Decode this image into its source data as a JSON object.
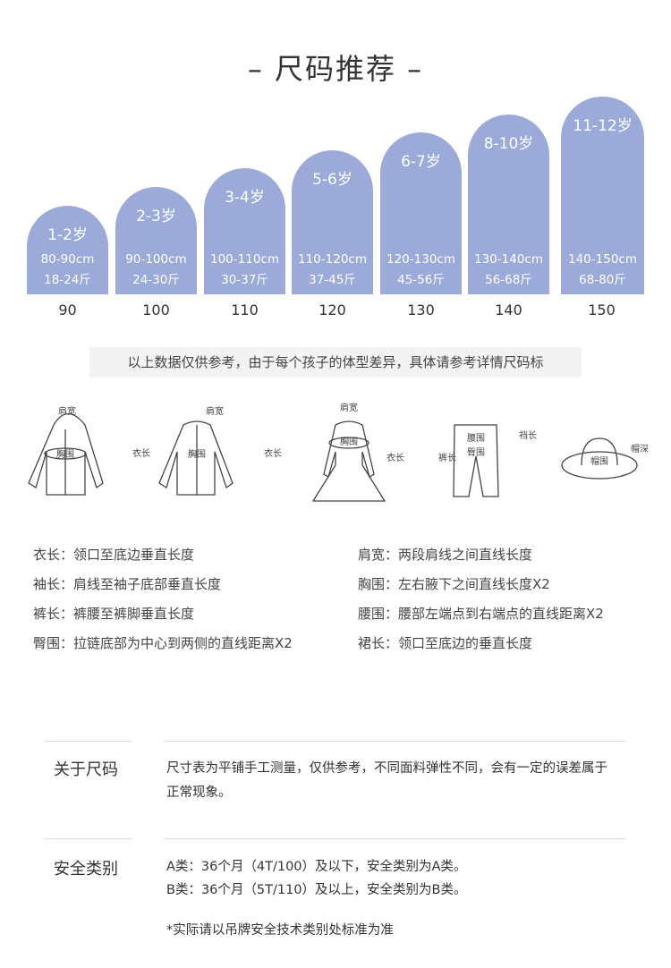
{
  "title": "– 尺码推荐 –",
  "bar_color": "#9baad8",
  "sizes": [
    {
      "age": "1-2岁",
      "height": "80-90cm",
      "weight": "18-24斤",
      "size": "90"
    },
    {
      "age": "2-3岁",
      "height": "90-100cm",
      "weight": "24-30斤",
      "size": "100"
    },
    {
      "age": "3-4岁",
      "height": "100-110cm",
      "weight": "30-37斤",
      "size": "110"
    },
    {
      "age": "5-6岁",
      "height": "110-120cm",
      "weight": "37-45斤",
      "size": "120"
    },
    {
      "age": "6-7岁",
      "height": "120-130cm",
      "weight": "45-56斤",
      "size": "130"
    },
    {
      "age": "8-10岁",
      "height": "130-140cm",
      "weight": "56-68斤",
      "size": "140"
    },
    {
      "age": "11-12岁",
      "height": "140-150cm",
      "weight": "68-80斤",
      "size": "150"
    }
  ],
  "note": "以上数据仅供参考，由于每个孩子的体型差异，具体请参考详情尺码标",
  "illus_labels": {
    "shoulder": "肩宽",
    "chest": "胸围",
    "sleeve": "袖长",
    "length": "衣长",
    "waist": "腰围",
    "hip": "臀围",
    "pants": "裤长",
    "rise": "裆长",
    "hat": "帽围",
    "hat_depth": "帽深"
  },
  "definitions": [
    "衣长：领口至底边垂直长度",
    "肩宽：两段肩线之间直线长度",
    "袖长：肩线至袖子底部垂直长度",
    "胸围：左右腋下之间直线长度X2",
    "裤长：裤腰至裤脚垂直长度",
    "腰围：腰部左端点到右端点的直线距离X2",
    "臀围：拉链底部为中心到两侧的直线距离X2",
    "裙长：领口至底边的垂直长度"
  ],
  "about": {
    "label": "关于尺码",
    "text": "尺寸表为平铺手工测量，仅供参考，不同面料弹性不同，会有一定的误差属于正常现象。"
  },
  "safety": {
    "label": "安全类别",
    "line1": "A类：36个月（4T/100）及以下，安全类别为A类。",
    "line2": "B类：36个月（5T/110）及以上，安全类别为B类。"
  },
  "footnote": "*实际请以吊牌安全技术类别处标准为准"
}
